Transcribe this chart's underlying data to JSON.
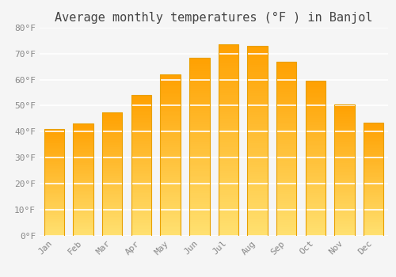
{
  "title": "Average monthly temperatures (°F ) in Banjol",
  "months": [
    "Jan",
    "Feb",
    "Mar",
    "Apr",
    "May",
    "Jun",
    "Jul",
    "Aug",
    "Sep",
    "Oct",
    "Nov",
    "Dec"
  ],
  "values": [
    41.0,
    43.0,
    47.5,
    54.0,
    62.0,
    68.5,
    73.5,
    73.0,
    67.0,
    59.5,
    50.5,
    43.5
  ],
  "bar_color_top": "#FFA500",
  "bar_color_bottom": "#FFE080",
  "ylim": [
    0,
    80
  ],
  "yticks": [
    0,
    10,
    20,
    30,
    40,
    50,
    60,
    70,
    80
  ],
  "ytick_labels": [
    "0°F",
    "10°F",
    "20°F",
    "30°F",
    "40°F",
    "50°F",
    "60°F",
    "70°F",
    "80°F"
  ],
  "background_color": "#F5F5F5",
  "grid_color": "#FFFFFF",
  "title_fontsize": 11,
  "tick_fontsize": 8,
  "font_family": "monospace",
  "bar_width": 0.7,
  "bar_edge_color": "#E8A000",
  "bar_edge_width": 0.8
}
